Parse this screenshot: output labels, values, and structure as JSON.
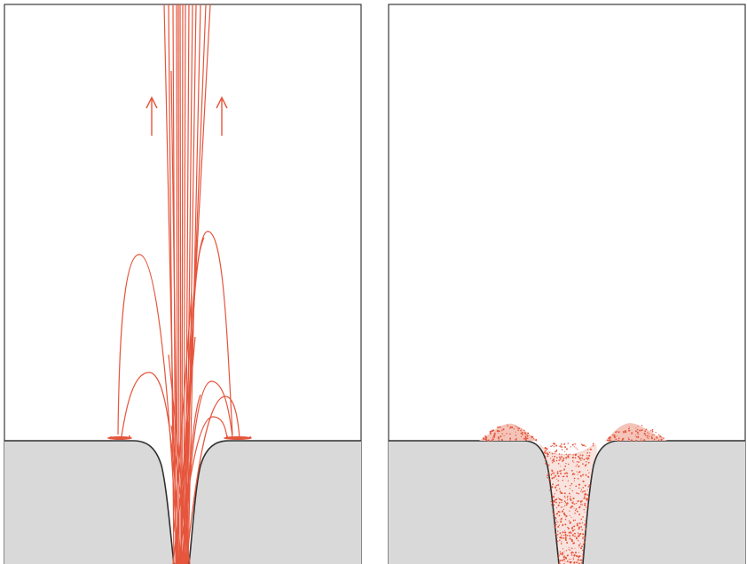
{
  "figure": {
    "panels": [
      {
        "id": "left",
        "content": "trajectories",
        "colors": {
          "trajectory": "#e5553c",
          "arrow": "#e5553c",
          "surface": "#d9d9d9",
          "frame": "#3a3a3a"
        }
      },
      {
        "id": "right",
        "content": "deposited-material",
        "colors": {
          "deposit": "#e5553c",
          "surface": "#d9d9d9",
          "frame": "#3a3a3a"
        }
      }
    ],
    "icons": [
      "arrow-up-icon",
      "arrow-up-icon"
    ]
  }
}
